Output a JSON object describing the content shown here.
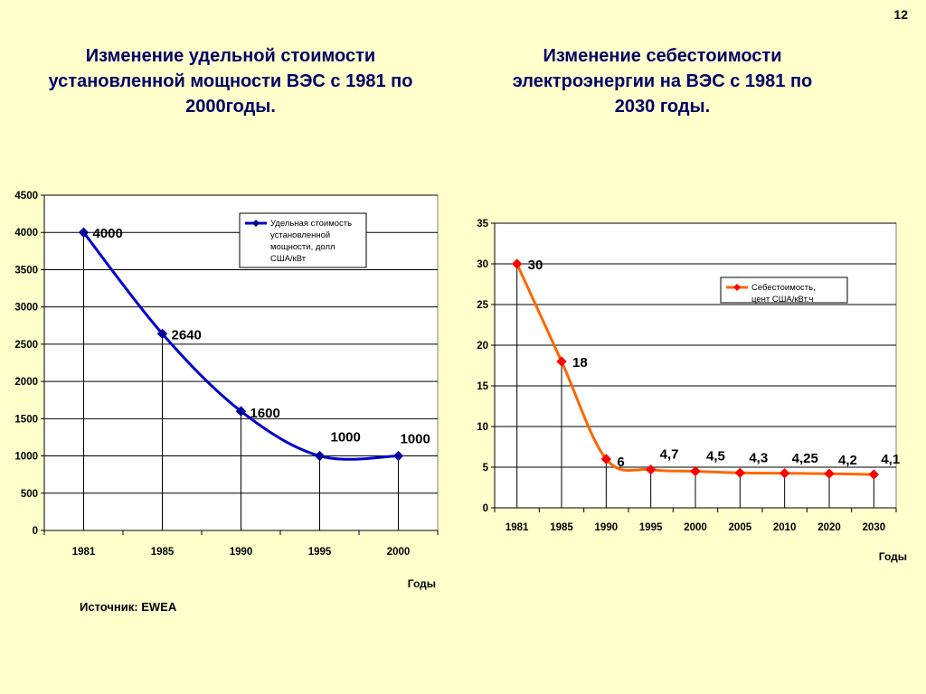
{
  "slide_number": "12",
  "left_title": "Изменение удельной стоимости установленной мощности ВЭС с 1981 по 2000годы.",
  "right_title": "Изменение себестоимости электроэнергии на ВЭС с 1981 по 2030 годы.",
  "source": "Источник: EWEA",
  "colors": {
    "background": "#FFFFCC",
    "title": "#000066",
    "left_series": "#0000CC",
    "right_series": "#FF6600",
    "right_marker": "#FF0000"
  },
  "chart_data": [
    {
      "type": "line",
      "categories": [
        "1981",
        "1985",
        "1990",
        "1995",
        "2000"
      ],
      "series": [
        {
          "name": "Удельная стоимость установленной мощности, долл США/кВт",
          "values": [
            4000,
            2640,
            1600,
            1000,
            1000
          ],
          "labels": [
            "4000",
            "2640",
            "1600",
            "1000",
            "1000"
          ]
        }
      ],
      "xlabel": "Годы",
      "ylabel": "",
      "ylim": [
        0,
        4500
      ],
      "yticks": [
        "0",
        "500",
        "1000",
        "1500",
        "2000",
        "2500",
        "3000",
        "3500",
        "4000",
        "4500"
      ],
      "grid": true,
      "legend": "top-right"
    },
    {
      "type": "line",
      "categories": [
        "1981",
        "1985",
        "1990",
        "1995",
        "2000",
        "2005",
        "2010",
        "2020",
        "2030"
      ],
      "series": [
        {
          "name": "Себестоимость, цент США/кВт.ч",
          "values": [
            30,
            18,
            6,
            4.7,
            4.5,
            4.3,
            4.25,
            4.2,
            4.1
          ],
          "labels": [
            "30",
            "18",
            "6",
            "4,7",
            "4,5",
            "4,3",
            "4,25",
            "4,2",
            "4,1"
          ]
        }
      ],
      "xlabel": "Годы",
      "ylabel": "",
      "ylim": [
        0,
        35
      ],
      "yticks": [
        "0",
        "5",
        "10",
        "15",
        "20",
        "25",
        "30",
        "35"
      ],
      "grid": true,
      "legend": "top-right"
    }
  ]
}
